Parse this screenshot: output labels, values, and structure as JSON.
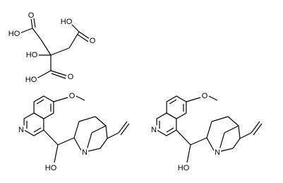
{
  "molecules": [
    {
      "labels": [
        "O",
        "HO",
        "HO",
        "O",
        "HO",
        "HO",
        "O"
      ]
    },
    {
      "labels": [
        "N",
        "O",
        "N",
        "HO"
      ]
    },
    {
      "labels": [
        "N",
        "O",
        "N",
        "HO"
      ]
    }
  ]
}
